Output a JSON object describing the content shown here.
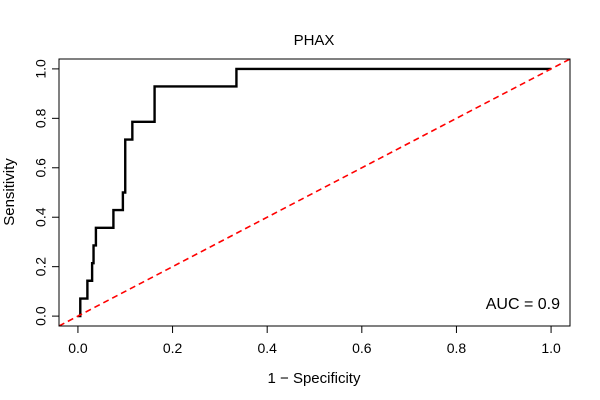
{
  "chart_data": {
    "type": "line",
    "title": "PHAX",
    "xlabel": "1 − Specificity",
    "ylabel": "Sensitivity",
    "xlim": [
      -0.04,
      1.04
    ],
    "ylim": [
      -0.04,
      1.04
    ],
    "x_ticks": [
      0.0,
      0.2,
      0.4,
      0.6,
      0.8,
      1.0
    ],
    "x_tick_labels": [
      "0.0",
      "0.2",
      "0.4",
      "0.6",
      "0.8",
      "1.0"
    ],
    "y_ticks": [
      0.0,
      0.2,
      0.4,
      0.6,
      0.8,
      1.0
    ],
    "y_tick_labels": [
      "0.0",
      "0.2",
      "0.4",
      "0.6",
      "0.8",
      "1.0"
    ],
    "annotation": "AUC = 0.9",
    "grid": false,
    "series": [
      {
        "color": "#000000",
        "style": "solid",
        "points": [
          [
            0.0,
            0.0
          ],
          [
            0.005,
            0.0
          ],
          [
            0.005,
            0.071
          ],
          [
            0.02,
            0.071
          ],
          [
            0.02,
            0.143
          ],
          [
            0.03,
            0.143
          ],
          [
            0.03,
            0.214
          ],
          [
            0.033,
            0.214
          ],
          [
            0.033,
            0.286
          ],
          [
            0.038,
            0.286
          ],
          [
            0.038,
            0.357
          ],
          [
            0.075,
            0.357
          ],
          [
            0.075,
            0.429
          ],
          [
            0.095,
            0.429
          ],
          [
            0.095,
            0.5
          ],
          [
            0.1,
            0.5
          ],
          [
            0.1,
            0.714
          ],
          [
            0.115,
            0.714
          ],
          [
            0.115,
            0.786
          ],
          [
            0.162,
            0.786
          ],
          [
            0.162,
            0.929
          ],
          [
            0.335,
            0.929
          ],
          [
            0.335,
            1.0
          ],
          [
            1.0,
            1.0
          ]
        ]
      },
      {
        "color": "#ff0000",
        "style": "dashed",
        "points": [
          [
            -0.04,
            -0.04
          ],
          [
            1.04,
            1.04
          ]
        ]
      }
    ]
  }
}
